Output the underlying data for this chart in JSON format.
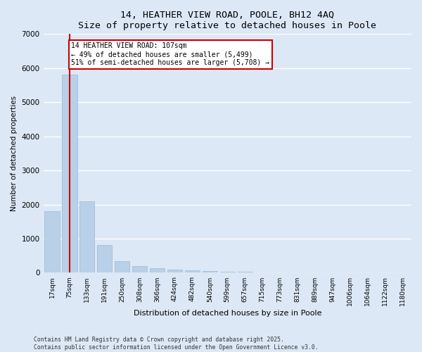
{
  "title_line1": "14, HEATHER VIEW ROAD, POOLE, BH12 4AQ",
  "title_line2": "Size of property relative to detached houses in Poole",
  "xlabel": "Distribution of detached houses by size in Poole",
  "ylabel": "Number of detached properties",
  "categories": [
    "17sqm",
    "75sqm",
    "133sqm",
    "191sqm",
    "250sqm",
    "308sqm",
    "366sqm",
    "424sqm",
    "482sqm",
    "540sqm",
    "599sqm",
    "657sqm",
    "715sqm",
    "773sqm",
    "831sqm",
    "889sqm",
    "947sqm",
    "1006sqm",
    "1064sqm",
    "1122sqm",
    "1180sqm"
  ],
  "values": [
    1800,
    5820,
    2100,
    820,
    330,
    200,
    130,
    90,
    70,
    55,
    40,
    20,
    10,
    0,
    0,
    0,
    0,
    0,
    0,
    0,
    0
  ],
  "bar_color": "#b8d0e8",
  "bar_edgecolor": "#a0b8d0",
  "vline_x": 1,
  "vline_color": "#cc0000",
  "annotation_text": "14 HEATHER VIEW ROAD: 107sqm\n← 49% of detached houses are smaller (5,499)\n51% of semi-detached houses are larger (5,708) →",
  "annotation_box_color": "#ffffff",
  "annotation_box_edgecolor": "#cc0000",
  "ylim": [
    0,
    7000
  ],
  "yticks": [
    0,
    1000,
    2000,
    3000,
    4000,
    5000,
    6000,
    7000
  ],
  "background_color": "#dce8f5",
  "fig_background_color": "#dce8f5",
  "grid_color": "#ffffff",
  "footer_line1": "Contains HM Land Registry data © Crown copyright and database right 2025.",
  "footer_line2": "Contains public sector information licensed under the Open Government Licence v3.0.",
  "fig_width": 6.0,
  "fig_height": 5.0,
  "dpi": 100
}
